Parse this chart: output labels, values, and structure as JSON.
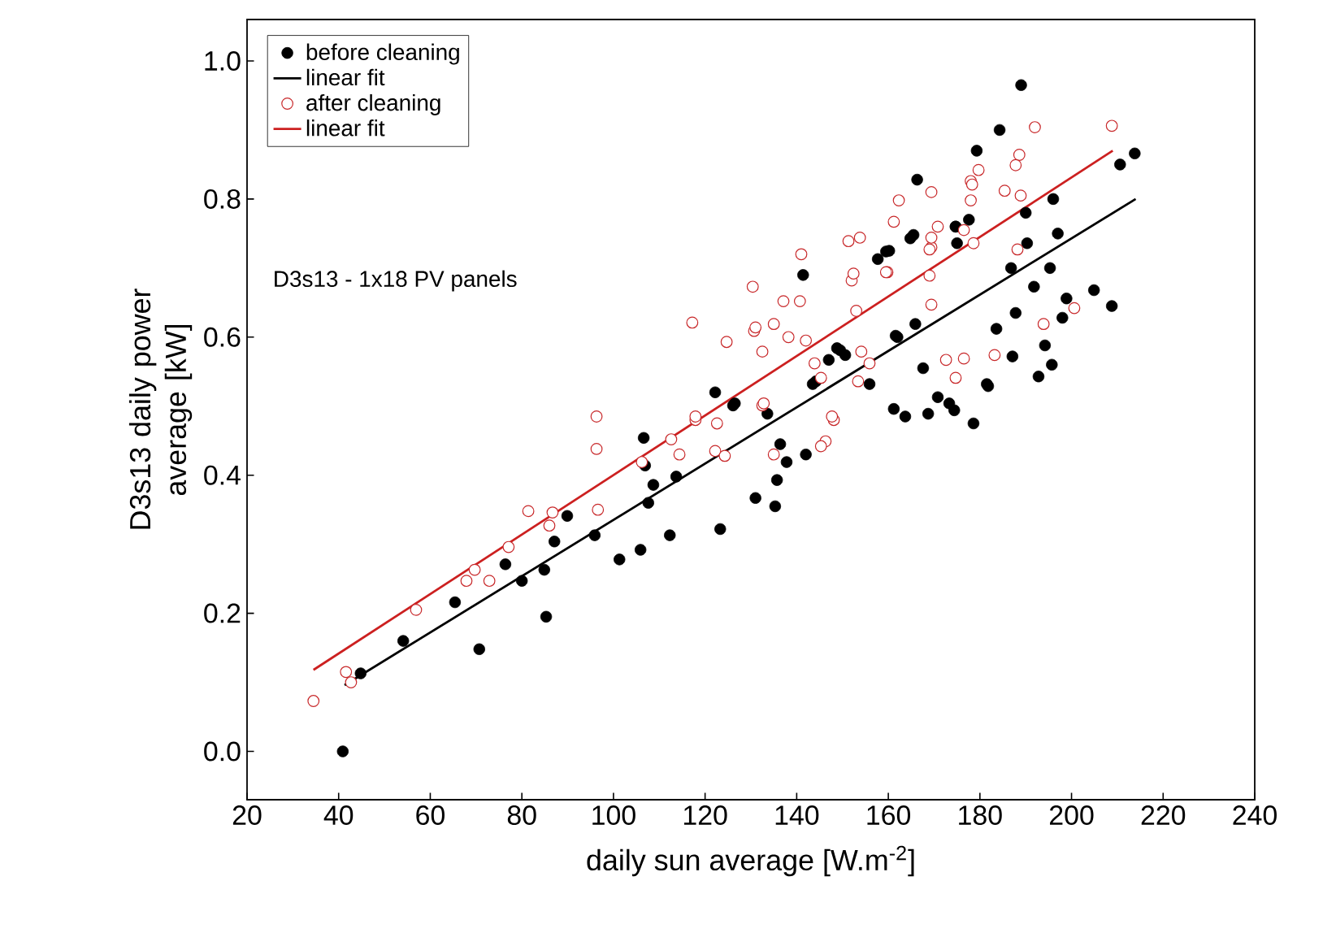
{
  "chart_data": {
    "type": "scatter",
    "xlabel": "daily sun average [W.m$^{-2}$]",
    "ylabel": "D3s13 daily power average [kW]",
    "annotations": [
      "D3s13 - 1x18 PV panels"
    ],
    "xlim": [
      20,
      240
    ],
    "ylim": [
      -0.07,
      1.06
    ],
    "xticks": [
      20,
      40,
      60,
      80,
      100,
      120,
      140,
      160,
      180,
      200,
      220,
      240
    ],
    "yticks": [
      {
        "value": 0,
        "label": "0.0"
      },
      {
        "value": 0.2,
        "label": "0.2"
      },
      {
        "value": 0.4,
        "label": "0.4"
      },
      {
        "value": 0.6,
        "label": "0.6"
      },
      {
        "value": 0.8,
        "label": "0.8"
      },
      {
        "value": 1.0,
        "label": "1.0"
      }
    ],
    "legend": "top left",
    "grid": false,
    "series": [
      {
        "name": "before cleaning",
        "marker": "circle",
        "color": "#000000",
        "x": [
          40.9,
          44.8,
          54.1,
          65.4,
          70.7,
          76.4,
          80,
          84.9,
          85.3,
          87.1,
          89.9,
          95.9,
          101.3,
          105.9,
          106.6,
          106.9,
          108.7,
          107.6,
          113.7,
          112.3,
          123.3,
          131,
          135.3,
          135.7,
          137.8,
          136.4,
          142,
          126.1,
          133.6,
          122.2,
          126.5,
          148.8,
          150.6,
          144.2,
          155.9,
          161.6,
          167.6,
          161.2,
          163.7,
          168.7,
          170.8,
          173.3,
          174.4,
          178.6,
          181.5,
          141.4,
          157.7,
          160.2,
          165.5,
          174.7,
          165.9,
          162,
          149.5,
          147,
          143.5,
          164.8,
          166.3,
          174.7,
          177.6,
          179.3,
          184.3,
          189,
          196,
          213.8,
          210.6,
          190,
          197,
          175,
          190.3,
          186.8,
          195.3,
          191.8,
          198.9,
          204.9,
          208.8,
          198,
          187.8,
          183.6,
          194.2,
          195.7,
          192.8,
          187.1,
          181.8,
          159.5
        ],
        "values": [
          0.0,
          0.113,
          0.16,
          0.216,
          0.148,
          0.271,
          0.247,
          0.263,
          0.195,
          0.304,
          0.341,
          0.313,
          0.278,
          0.292,
          0.454,
          0.414,
          0.386,
          0.36,
          0.398,
          0.313,
          0.322,
          0.367,
          0.355,
          0.393,
          0.419,
          0.445,
          0.43,
          0.501,
          0.489,
          0.52,
          0.504,
          0.584,
          0.574,
          0.536,
          0.532,
          0.602,
          0.555,
          0.496,
          0.485,
          0.489,
          0.513,
          0.504,
          0.494,
          0.475,
          0.532,
          0.69,
          0.713,
          0.725,
          0.748,
          0.76,
          0.619,
          0.6,
          0.581,
          0.567,
          0.532,
          0.743,
          0.828,
          0.76,
          0.77,
          0.87,
          0.9,
          0.965,
          0.8,
          0.866,
          0.85,
          0.78,
          0.75,
          0.736,
          0.736,
          0.7,
          0.7,
          0.673,
          0.656,
          0.668,
          0.645,
          0.628,
          0.635,
          0.612,
          0.588,
          0.56,
          0.543,
          0.572,
          0.529,
          0.724
        ]
      },
      {
        "name": "linear fit",
        "type": "line",
        "marker": "none",
        "color": "#000000",
        "x": [
          41.3,
          214
        ],
        "values": [
          0.096,
          0.8
        ]
      },
      {
        "name": "after cleaning",
        "marker": "circle",
        "color": "#c8282a",
        "x": [
          34.5,
          41.6,
          42.7,
          56.9,
          67.9,
          69.7,
          72.9,
          77.1,
          81.4,
          86.7,
          86,
          96.6,
          96.3,
          96.3,
          106.2,
          124.7,
          132.5,
          130.7,
          138.2,
          142,
          143.9,
          145.3,
          154.1,
          155.9,
          153.4,
          172.6,
          176.5,
          174.7,
          132.5,
          148.1,
          146.3,
          145.3,
          135,
          122.6,
          117.9,
          122.2,
          124.3,
          114.4,
          112.6,
          117.2,
          130.4,
          137.1,
          140.7,
          141,
          131,
          135,
          151.3,
          153.8,
          152,
          152.4,
          153,
          159.8,
          161.2,
          162.3,
          169.4,
          169,
          169.4,
          169.4,
          170.8,
          176.5,
          178,
          147.7,
          132.8,
          117.9,
          208.8,
          192,
          188.6,
          187.8,
          179.7,
          178.3,
          178,
          185.4,
          188.9,
          169.4,
          169,
          178.6,
          159.5,
          188.2,
          193.9,
          200.6,
          183.2
        ],
        "values": [
          0.073,
          0.115,
          0.1,
          0.205,
          0.247,
          0.263,
          0.247,
          0.296,
          0.348,
          0.346,
          0.327,
          0.35,
          0.438,
          0.485,
          0.419,
          0.593,
          0.579,
          0.609,
          0.6,
          0.595,
          0.562,
          0.541,
          0.579,
          0.562,
          0.536,
          0.567,
          0.569,
          0.541,
          0.501,
          0.48,
          0.449,
          0.442,
          0.43,
          0.475,
          0.48,
          0.435,
          0.428,
          0.43,
          0.452,
          0.621,
          0.673,
          0.652,
          0.652,
          0.72,
          0.614,
          0.619,
          0.739,
          0.744,
          0.682,
          0.692,
          0.638,
          0.694,
          0.767,
          0.798,
          0.81,
          0.689,
          0.647,
          0.73,
          0.76,
          0.755,
          0.826,
          0.485,
          0.504,
          0.485,
          0.906,
          0.904,
          0.864,
          0.849,
          0.842,
          0.821,
          0.798,
          0.812,
          0.805,
          0.744,
          0.727,
          0.736,
          0.694,
          0.727,
          0.619,
          0.642,
          0.574
        ]
      },
      {
        "name": "linear fit",
        "type": "line",
        "marker": "none",
        "color": "#cc2020",
        "x": [
          34.5,
          209
        ],
        "values": [
          0.118,
          0.87
        ]
      }
    ]
  }
}
